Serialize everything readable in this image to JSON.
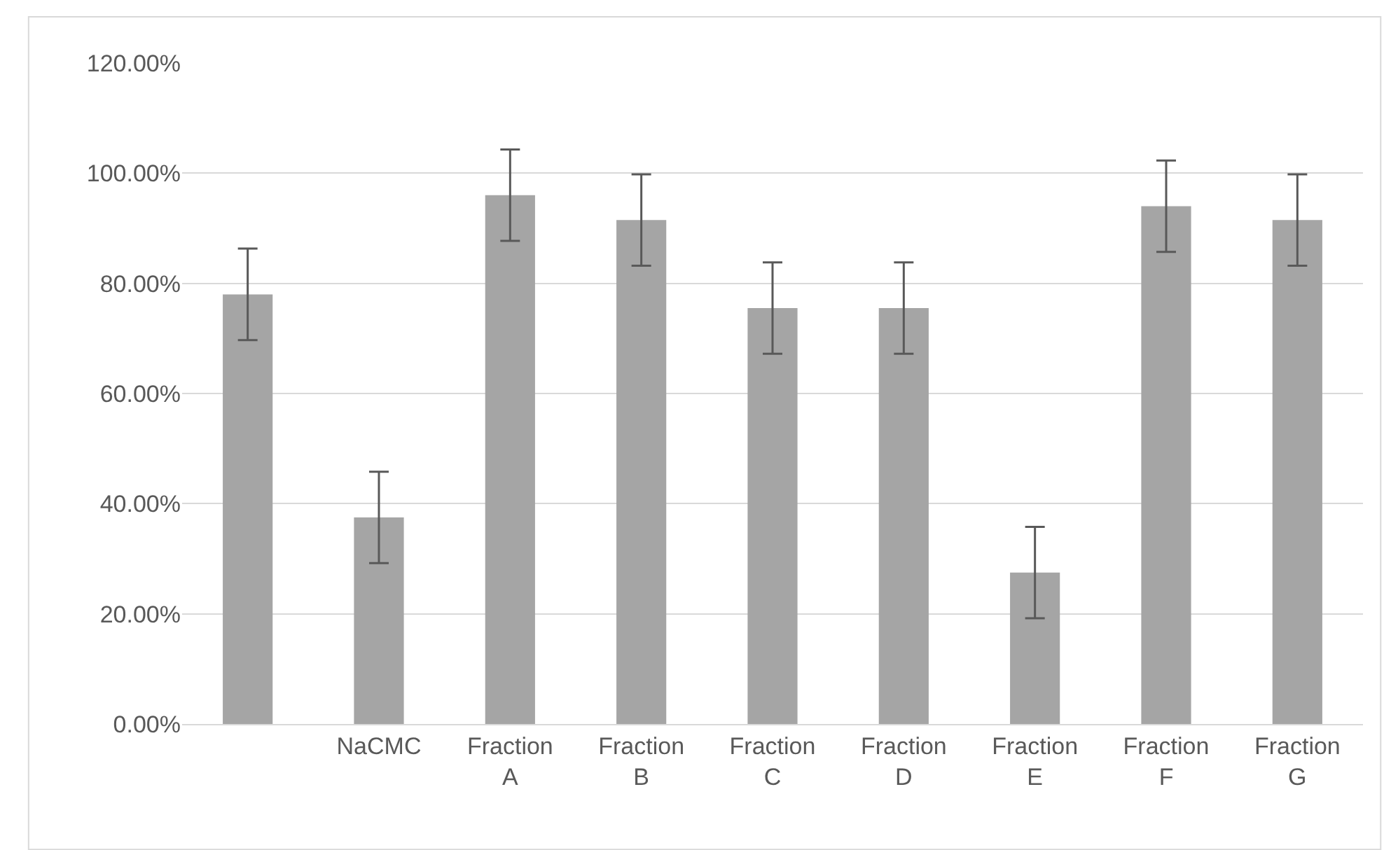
{
  "chart_data": {
    "type": "bar",
    "categories": [
      null,
      "NaCMC",
      "Fraction A",
      "Fraction B",
      "Fraction C",
      "Fraction D",
      "Fraction E",
      "Fraction F",
      "Fraction G"
    ],
    "values": [
      78,
      37.5,
      96,
      91.5,
      75.5,
      75.5,
      27.5,
      94,
      91.5
    ],
    "errors": [
      8.3,
      8.3,
      8.3,
      8.3,
      8.3,
      8.3,
      8.3,
      8.3,
      8.3
    ],
    "color": "#a5a5a5",
    "ylim": [
      0,
      120
    ],
    "yticks": [
      {
        "value": 0,
        "label": "0.00%"
      },
      {
        "value": 20,
        "label": "20.00%"
      },
      {
        "value": 40,
        "label": "40.00%"
      },
      {
        "value": 60,
        "label": "60.00%"
      },
      {
        "value": 80,
        "label": "80.00%"
      },
      {
        "value": 100,
        "label": "100.00%"
      },
      {
        "value": 120,
        "label": "120.00%"
      }
    ],
    "grid": "y"
  }
}
